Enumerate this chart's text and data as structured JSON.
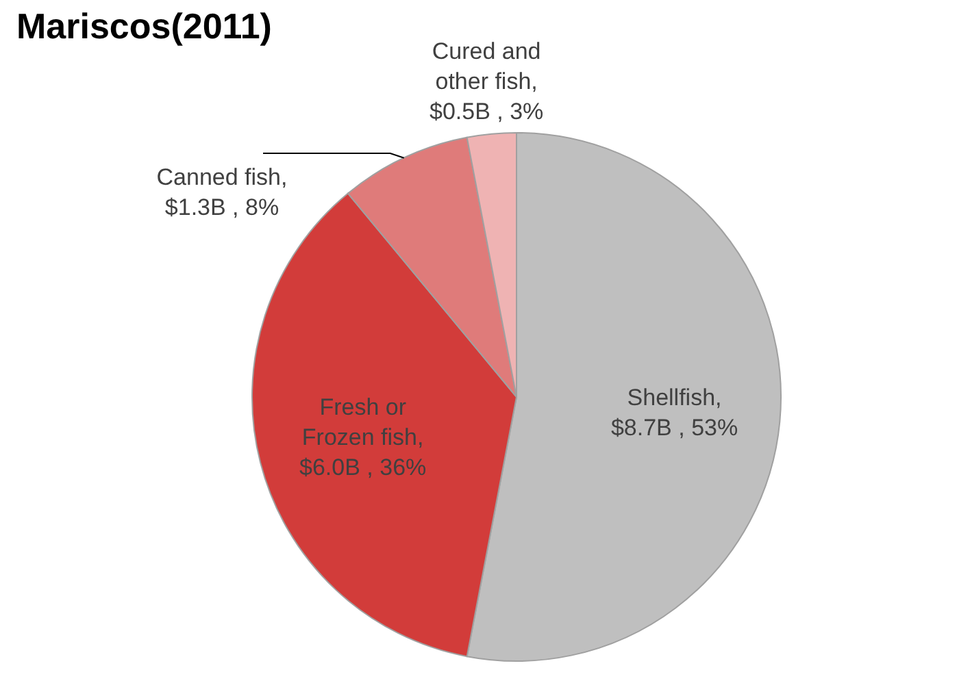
{
  "chart_data": {
    "type": "pie",
    "title": "Mariscos(2011)",
    "categories": [
      "Shellfish, $8.7B , 53%",
      "Fresh or Frozen fish, $6.0B , 36%",
      "Canned fish, $1.3B , 8%",
      "Cured and other fish, $0.5B , 3%"
    ],
    "values": [
      53,
      36,
      8,
      3
    ],
    "colors": [
      "#bfbfbf",
      "#d23c3a",
      "#df7b7a",
      "#efb3b3"
    ],
    "legend": false
  }
}
